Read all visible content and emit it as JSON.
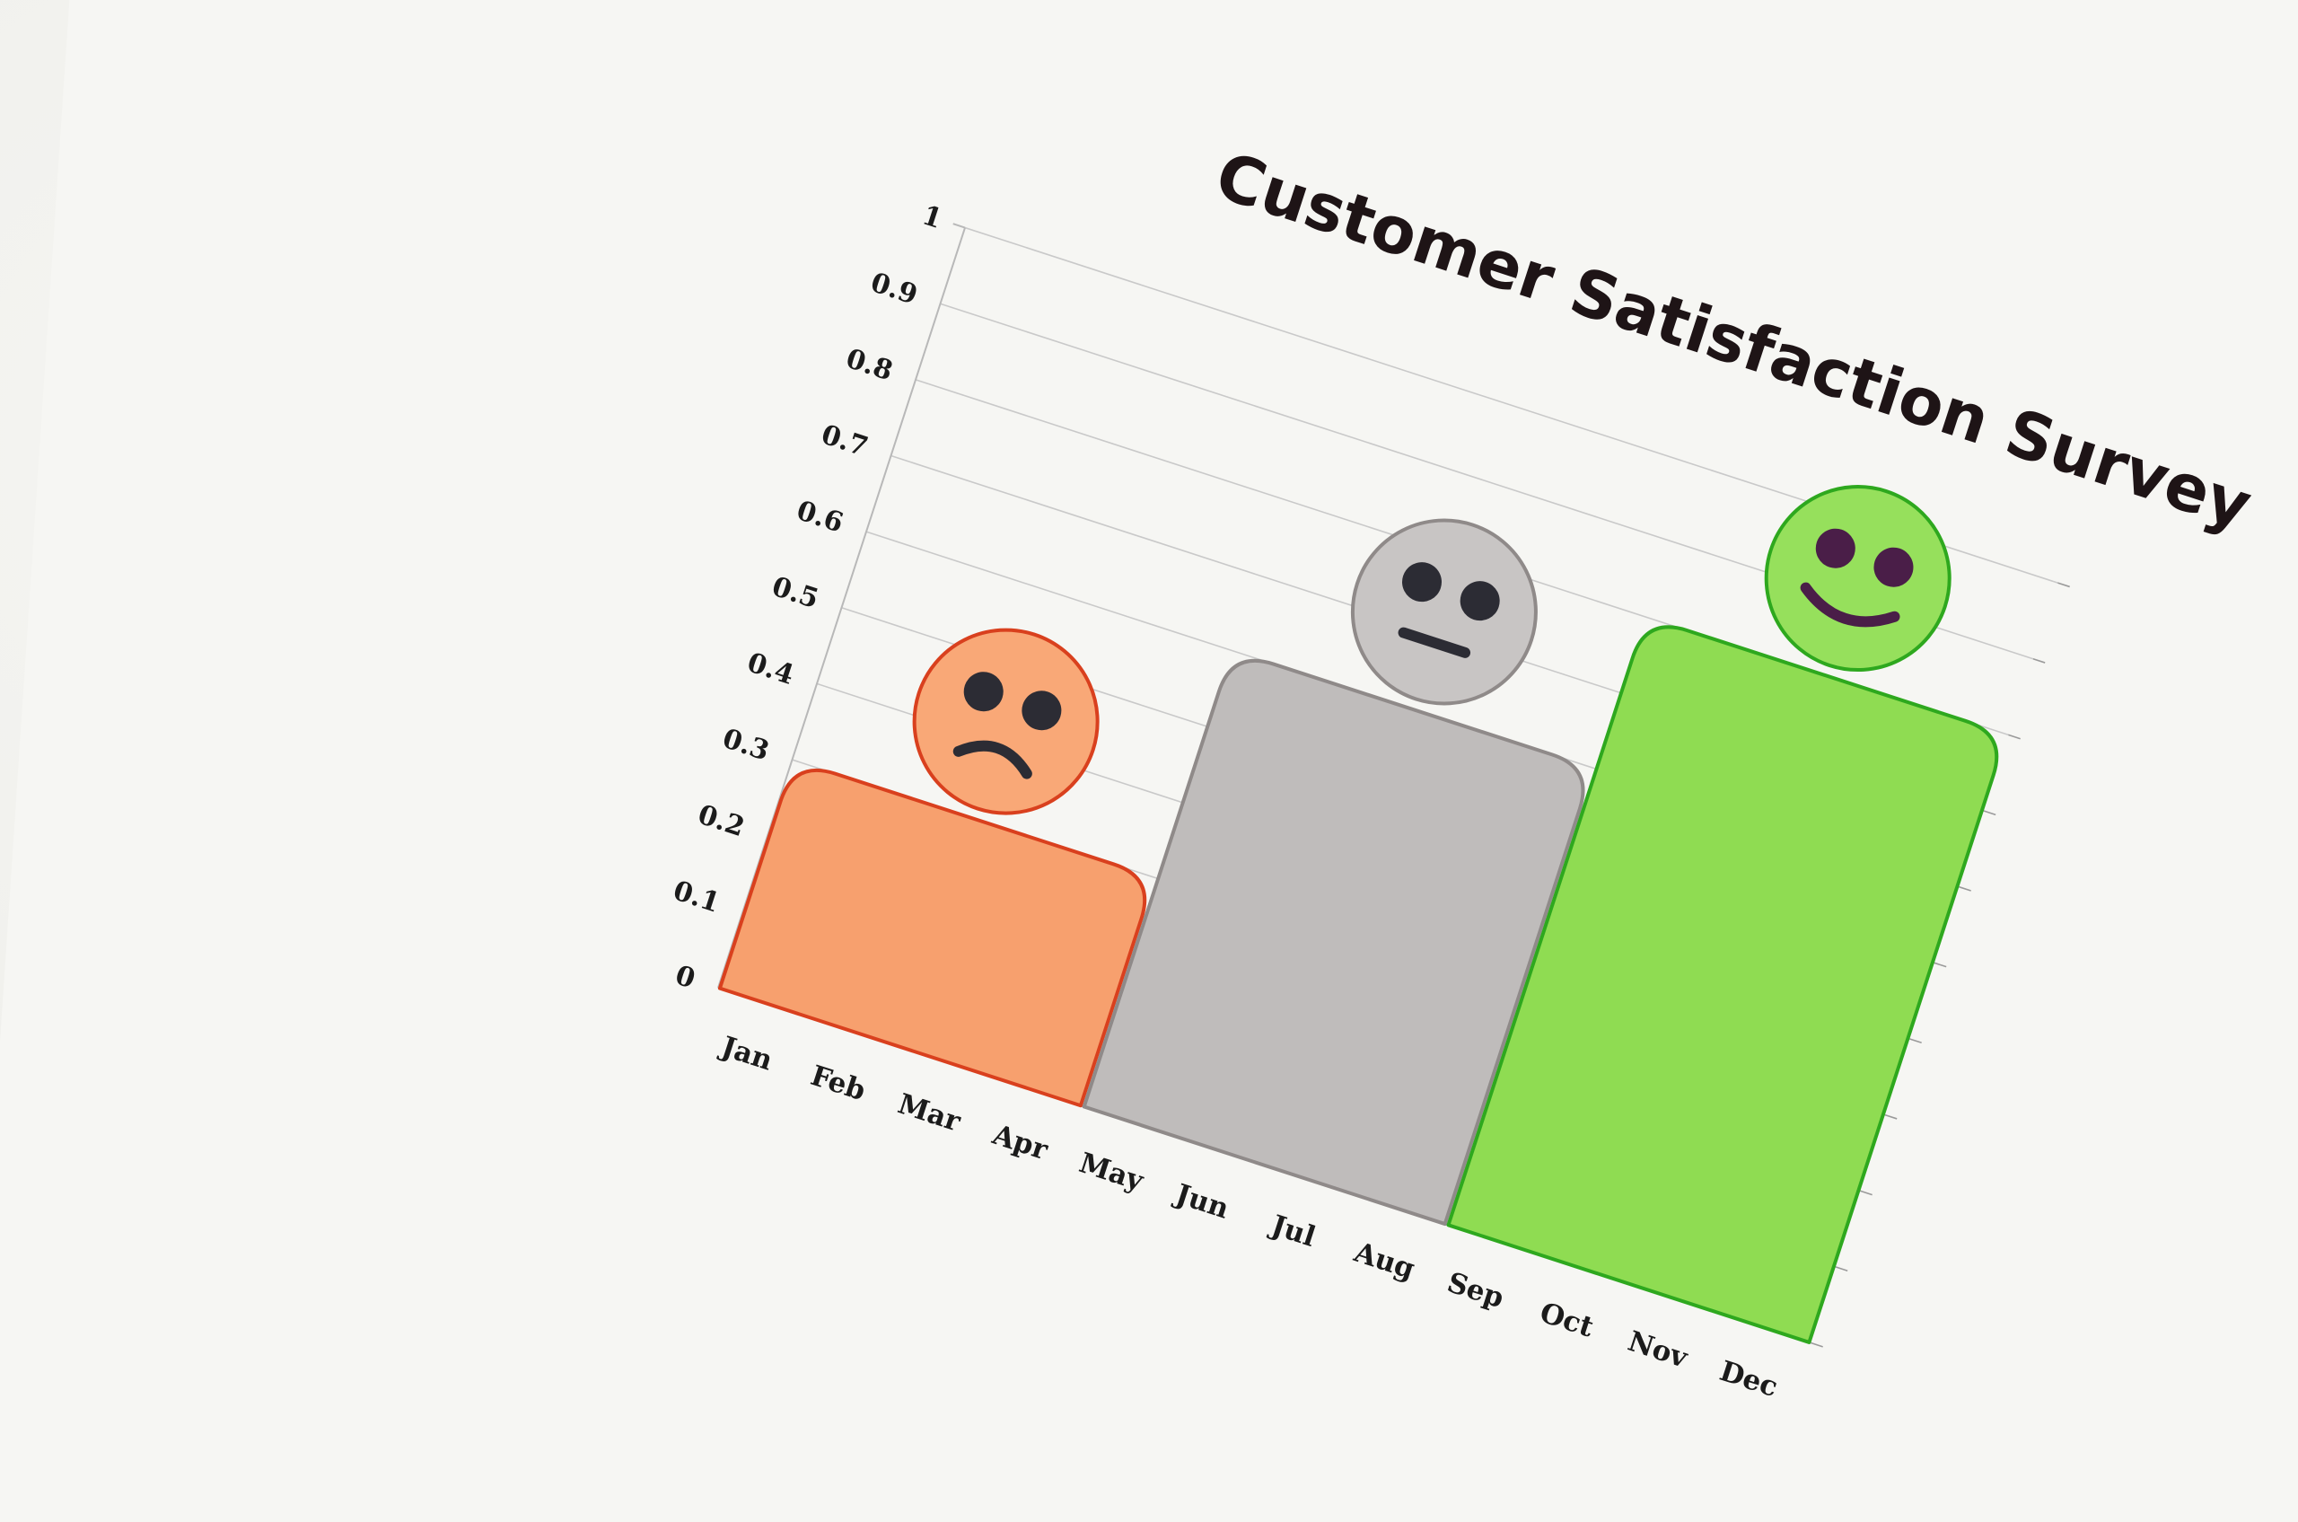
{
  "chart_data": {
    "type": "bar",
    "title": "Customer Satisfaction Survey",
    "xlabel": "",
    "ylabel": "",
    "ylim": [
      0,
      1
    ],
    "y_ticks": [
      "0",
      "0.1",
      "0.2",
      "0.3",
      "0.4",
      "0.5",
      "0.6",
      "0.7",
      "0.8",
      "0.9",
      "1"
    ],
    "categories": [
      "Jan",
      "Feb",
      "Mar",
      "Apr",
      "May",
      "Jun",
      "Jul",
      "Aug",
      "Sep",
      "Oct",
      "Nov",
      "Dec"
    ],
    "grid": true,
    "legend": "none",
    "bars": [
      {
        "start_index": 0,
        "end_index": 3,
        "value": 0.3,
        "face": "sad",
        "face_icon": "sad-face-icon",
        "fill": "#f7a06e",
        "stroke": "#d9401e",
        "face_fill": "#f9a877"
      },
      {
        "start_index": 4,
        "end_index": 7,
        "value": 0.6,
        "face": "neutral",
        "face_icon": "neutral-face-icon",
        "fill": "#bfbcbb",
        "stroke": "#8f8a89",
        "face_fill": "#c8c5c4"
      },
      {
        "start_index": 8,
        "end_index": 11,
        "value": 0.8,
        "face": "happy",
        "face_icon": "happy-face-icon",
        "fill": "#8fdc52",
        "stroke": "#2ea81e",
        "face_fill": "#96e05c"
      }
    ]
  }
}
